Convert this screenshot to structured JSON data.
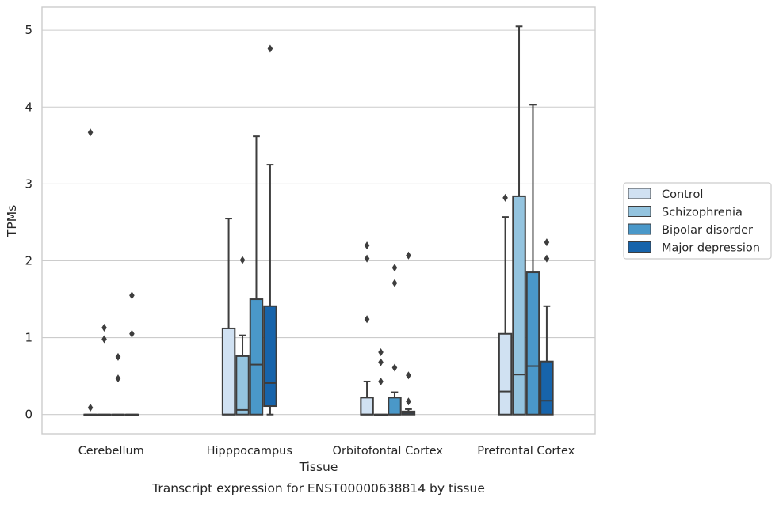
{
  "chart_data": {
    "type": "boxplot",
    "title": "Transcript expression for ENST00000638814 by tissue",
    "xlabel": "Tissue",
    "ylabel": "TPMs",
    "ylim": [
      -0.25,
      5.3
    ],
    "yticks": [
      0,
      1,
      2,
      3,
      4,
      5
    ],
    "grid": "horizontal",
    "legend": "right",
    "categories": [
      "Cerebellum",
      "Hipppocampus",
      "Orbitofontal Cortex",
      "Prefrontal Cortex"
    ],
    "series": [
      {
        "name": "Control",
        "color": "#d0e1f2",
        "boxes": [
          {
            "whislo": 0,
            "q1": 0,
            "med": 0,
            "q3": 0,
            "whishi": 0,
            "fliers": [
              3.67,
              0.09
            ]
          },
          {
            "whislo": 0,
            "q1": 0,
            "med": 0,
            "q3": 1.12,
            "whishi": 2.55,
            "fliers": []
          },
          {
            "whislo": 0,
            "q1": 0,
            "med": 0,
            "q3": 0.22,
            "whishi": 0.43,
            "fliers": [
              2.2,
              2.03,
              1.24
            ]
          },
          {
            "whislo": 0,
            "q1": 0,
            "med": 0.3,
            "q3": 1.05,
            "whishi": 2.57,
            "fliers": [
              2.82
            ]
          }
        ]
      },
      {
        "name": "Schizophrenia",
        "color": "#94c4df",
        "boxes": [
          {
            "whislo": 0,
            "q1": 0,
            "med": 0,
            "q3": 0,
            "whishi": 0,
            "fliers": [
              1.13,
              0.98
            ]
          },
          {
            "whislo": 0,
            "q1": 0,
            "med": 0.06,
            "q3": 0.76,
            "whishi": 1.03,
            "fliers": [
              2.01
            ]
          },
          {
            "whislo": 0,
            "q1": 0,
            "med": 0,
            "q3": 0,
            "whishi": 0,
            "fliers": [
              0.81,
              0.68,
              0.43
            ]
          },
          {
            "whislo": 0,
            "q1": 0,
            "med": 0.52,
            "q3": 2.84,
            "whishi": 5.05,
            "fliers": []
          }
        ]
      },
      {
        "name": "Bipolar disorder",
        "color": "#4a98c9",
        "boxes": [
          {
            "whislo": 0,
            "q1": 0,
            "med": 0,
            "q3": 0,
            "whishi": 0,
            "fliers": [
              0.75,
              0.47
            ]
          },
          {
            "whislo": 0,
            "q1": 0,
            "med": 0.65,
            "q3": 1.5,
            "whishi": 3.62,
            "fliers": []
          },
          {
            "whislo": 0,
            "q1": 0,
            "med": 0,
            "q3": 0.22,
            "whishi": 0.29,
            "fliers": [
              1.91,
              1.71,
              0.61
            ]
          },
          {
            "whislo": 0,
            "q1": 0,
            "med": 0.63,
            "q3": 1.85,
            "whishi": 4.03,
            "fliers": []
          }
        ]
      },
      {
        "name": "Major depression",
        "color": "#1764ab",
        "boxes": [
          {
            "whislo": 0,
            "q1": 0,
            "med": 0,
            "q3": 0,
            "whishi": 0,
            "fliers": [
              1.55,
              1.05
            ]
          },
          {
            "whislo": 0,
            "q1": 0.11,
            "med": 0.41,
            "q3": 1.41,
            "whishi": 3.25,
            "fliers": [
              4.76
            ]
          },
          {
            "whislo": 0,
            "q1": 0,
            "med": 0.02,
            "q3": 0.04,
            "whishi": 0.07,
            "fliers": [
              2.07,
              0.51,
              0.17
            ]
          },
          {
            "whislo": 0,
            "q1": 0,
            "med": 0.18,
            "q3": 0.69,
            "whishi": 1.41,
            "fliers": [
              2.24,
              2.03
            ]
          }
        ]
      }
    ]
  }
}
